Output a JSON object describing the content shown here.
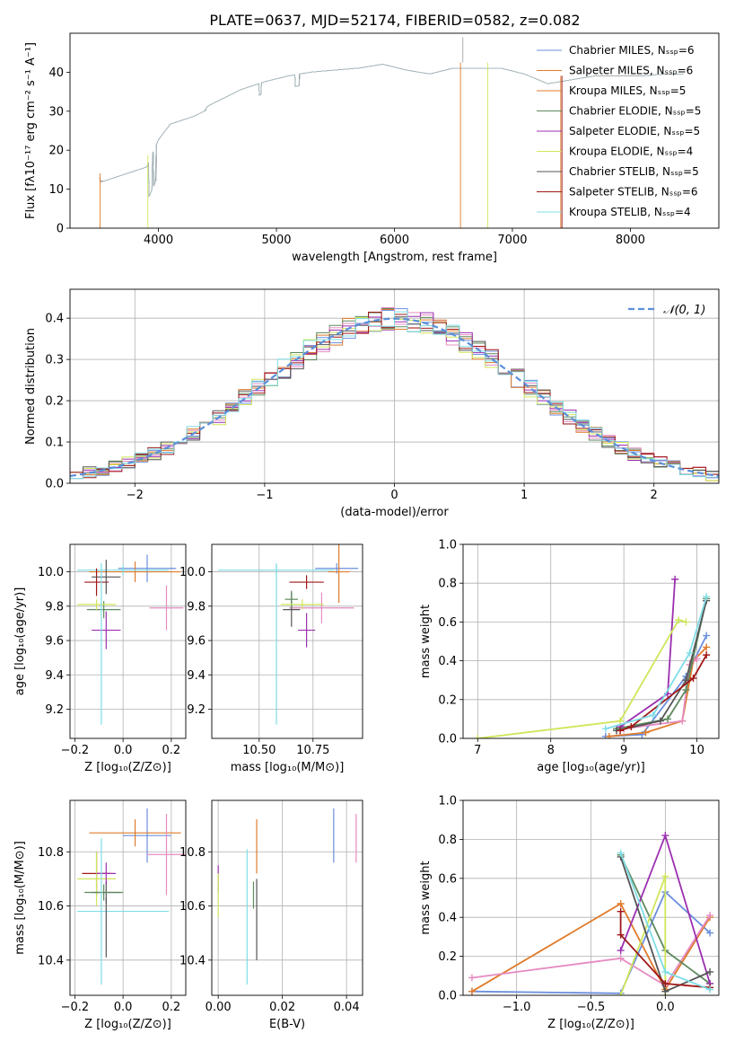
{
  "colors": {
    "blue": "#6b8fdc",
    "orange": "#e07b2a",
    "green": "#5e8a5e",
    "pink": "#e58cc2",
    "purple": "#9c2fb0",
    "yellow": "#cfe65a",
    "gray": "#555555",
    "red": "#a01818",
    "cyan": "#7fdde6",
    "normal_curve": "#5b8fd9"
  },
  "chart_data": [
    {
      "id": "spectrum",
      "type": "line",
      "title": "PLATE=0637, MJD=52174, FIBERID=0582, z=0.082",
      "xlabel": "wavelength [Angstrom, rest frame]",
      "ylabel": "Flux [fλ10⁻¹⁷ erg cm⁻² s⁻¹ A⁻¹]",
      "xlim": [
        3250,
        8750
      ],
      "ylim": [
        0,
        50
      ],
      "xticks": [
        "4000",
        "5000",
        "6000",
        "7000",
        "8000"
      ],
      "yticks": [
        "0",
        "10",
        "20",
        "30",
        "40"
      ],
      "legend_position": "right",
      "legend": [
        {
          "label": "Chabrier MILES, Nₛₛₚ=6",
          "color": "blue"
        },
        {
          "label": "Salpeter MILES, Nₛₛₚ=6",
          "color": "orange"
        },
        {
          "label": "Kroupa MILES, Nₛₛₚ=5",
          "color": "orange"
        },
        {
          "label": "Chabrier ELODIE, Nₛₛₚ=5",
          "color": "green"
        },
        {
          "label": "Salpeter ELODIE, Nₛₛₚ=5",
          "color": "purple"
        },
        {
          "label": "Kroupa ELODIE, Nₛₛₚ=4",
          "color": "yellow"
        },
        {
          "label": "Chabrier STELIB, Nₛₛₚ=5",
          "color": "gray"
        },
        {
          "label": "Salpeter STELIB, Nₛₛₚ=6",
          "color": "red"
        },
        {
          "label": "Kroupa STELIB, Nₛₛₚ=4",
          "color": "cyan"
        }
      ],
      "continuum": {
        "wavelength": [
          3500,
          3700,
          3900,
          4000,
          4100,
          4300,
          4500,
          4700,
          4900,
          5100,
          5300,
          5500,
          5700,
          5900,
          6100,
          6300,
          6500,
          6700,
          6900,
          7100,
          7300,
          7500,
          7700,
          7900,
          8100,
          8300,
          8450
        ],
        "flux": [
          14,
          16,
          18,
          25,
          29,
          31,
          34,
          37,
          39,
          40.5,
          41.5,
          42,
          42.5,
          43.5,
          42,
          41,
          42.5,
          42.5,
          42.5,
          41,
          38.5,
          39.5,
          40.5,
          40.5,
          40.5,
          41,
          41
        ]
      }
    },
    {
      "id": "residuals",
      "type": "histogram",
      "xlabel": "(data-model)/error",
      "ylabel": "Normed distribution",
      "xlim": [
        -2.5,
        2.5
      ],
      "ylim": [
        0,
        0.47
      ],
      "xticks": [
        "−2",
        "−1",
        "0",
        "1",
        "2"
      ],
      "yticks": [
        "0.0",
        "0.1",
        "0.2",
        "0.3",
        "0.4"
      ],
      "bin_width": 0.1,
      "legend": [
        {
          "label": "𝒩(0, 1)",
          "color": "normal_curve",
          "style": "dashed"
        }
      ]
    },
    {
      "id": "age_vs_Z",
      "type": "errorbar",
      "xlabel": "Z [log₁₀(Z/Z⊙)]",
      "ylabel": "age  [log₁₀(age/yr)]",
      "xlim": [
        -0.22,
        0.26
      ],
      "ylim": [
        9.03,
        10.16
      ],
      "xticks": [
        "−0.2",
        "0.0",
        "0.2"
      ],
      "yticks": [
        "9.2",
        "9.4",
        "9.6",
        "9.8",
        "10.0"
      ],
      "points": [
        {
          "color": "blue",
          "x": 0.1,
          "xerr": 0.12,
          "y": 10.02,
          "yerr": 0.08
        },
        {
          "color": "orange",
          "x": 0.05,
          "xerr": 0.19,
          "y": 10.0,
          "yerr": 0.06
        },
        {
          "color": "pink",
          "x": 0.18,
          "xerr": 0.07,
          "y": 9.79,
          "yerr": 0.13
        },
        {
          "color": "cyan",
          "x": 0.0,
          "xerr": 0.19,
          "y": 10.01,
          "yerr": 0.03
        },
        {
          "color": "red",
          "x": -0.11,
          "xerr": 0.05,
          "y": 9.94,
          "yerr": 0.08
        },
        {
          "color": "gray",
          "x": -0.07,
          "xerr": 0.06,
          "y": 9.97,
          "yerr": 0.1
        },
        {
          "color": "green",
          "x": -0.08,
          "xerr": 0.07,
          "y": 9.78,
          "yerr": 0.05
        },
        {
          "color": "yellow",
          "x": -0.11,
          "xerr": 0.08,
          "y": 9.81,
          "yerr": 0.03
        },
        {
          "color": "purple",
          "x": -0.07,
          "xerr": 0.06,
          "y": 9.66,
          "yerr": 0.11
        },
        {
          "color": "cyan",
          "x": -0.09,
          "xerr": 0.0,
          "y": 9.58,
          "yerr": 0.47
        }
      ]
    },
    {
      "id": "age_vs_mass",
      "type": "errorbar",
      "xlabel": "mass [log₁₀(M/M⊙)]",
      "xlim": [
        10.28,
        10.98
      ],
      "ylim": [
        9.03,
        10.16
      ],
      "xticks": [
        "10.50",
        "10.75"
      ],
      "yticks": [
        "9.2",
        "9.4",
        "9.6",
        "9.8",
        "10.0"
      ],
      "points": [
        {
          "color": "blue",
          "x": 10.86,
          "xerr": 0.1,
          "y": 10.02,
          "yerr": 0.03
        },
        {
          "color": "orange",
          "x": 10.87,
          "xerr": 0.05,
          "y": 10.0,
          "yerr": 0.18
        },
        {
          "color": "pink",
          "x": 10.79,
          "xerr": 0.15,
          "y": 9.79,
          "yerr": 0.09
        },
        {
          "color": "cyan",
          "x": 10.58,
          "xerr": 0.27,
          "y": 10.01,
          "yerr": 0.03
        },
        {
          "color": "red",
          "x": 10.72,
          "xerr": 0.08,
          "y": 9.94,
          "yerr": 0.04
        },
        {
          "color": "gray",
          "x": 10.65,
          "xerr": 0.04,
          "y": 9.78,
          "yerr": 0.1
        },
        {
          "color": "green",
          "x": 10.65,
          "xerr": 0.03,
          "y": 9.84,
          "yerr": 0.05
        },
        {
          "color": "yellow",
          "x": 10.7,
          "xerr": 0.1,
          "y": 9.81,
          "yerr": 0.03
        },
        {
          "color": "purple",
          "x": 10.72,
          "xerr": 0.04,
          "y": 9.66,
          "yerr": 0.1
        },
        {
          "color": "cyan",
          "x": 10.58,
          "xerr": 0.0,
          "y": 9.58,
          "yerr": 0.47
        }
      ]
    },
    {
      "id": "weight_vs_age",
      "type": "line",
      "xlabel": "age  [log₁₀(age/yr)]",
      "ylabel": "mass weight",
      "xlim": [
        6.8,
        10.3
      ],
      "ylim": [
        0,
        1.0
      ],
      "xticks": [
        "7",
        "8",
        "9",
        "10"
      ],
      "yticks": [
        "0.0",
        "0.2",
        "0.4",
        "0.6",
        "0.8",
        "1.0"
      ],
      "series": [
        {
          "color": "blue",
          "points": [
            [
              8.75,
              0.01
            ],
            [
              9.25,
              0.02
            ],
            [
              9.85,
              0.32
            ],
            [
              10.13,
              0.53
            ]
          ]
        },
        {
          "color": "orange",
          "points": [
            [
              8.8,
              0.01
            ],
            [
              9.3,
              0.03
            ],
            [
              9.8,
              0.09
            ],
            [
              9.95,
              0.4
            ],
            [
              10.13,
              0.47
            ]
          ]
        },
        {
          "color": "pink",
          "points": [
            [
              9.0,
              0.05
            ],
            [
              9.8,
              0.09
            ],
            [
              9.9,
              0.38
            ],
            [
              10.0,
              0.41
            ]
          ]
        },
        {
          "color": "green",
          "points": [
            [
              8.9,
              0.05
            ],
            [
              9.6,
              0.1
            ],
            [
              9.85,
              0.25
            ],
            [
              10.13,
              0.72
            ]
          ]
        },
        {
          "color": "purple",
          "points": [
            [
              8.95,
              0.06
            ],
            [
              9.6,
              0.23
            ],
            [
              9.7,
              0.82
            ]
          ]
        },
        {
          "color": "yellow",
          "points": [
            [
              7.0,
              0.0
            ],
            [
              8.95,
              0.09
            ],
            [
              9.75,
              0.61
            ],
            [
              9.85,
              0.6
            ]
          ]
        },
        {
          "color": "gray",
          "points": [
            [
              8.9,
              0.04
            ],
            [
              9.5,
              0.09
            ],
            [
              9.85,
              0.3
            ],
            [
              10.13,
              0.71
            ]
          ]
        },
        {
          "color": "red",
          "points": [
            [
              8.95,
              0.04
            ],
            [
              9.1,
              0.06
            ],
            [
              9.95,
              0.31
            ],
            [
              10.13,
              0.43
            ]
          ]
        },
        {
          "color": "cyan",
          "points": [
            [
              8.75,
              0.05
            ],
            [
              9.4,
              0.12
            ],
            [
              9.9,
              0.44
            ],
            [
              10.13,
              0.73
            ]
          ]
        }
      ]
    },
    {
      "id": "mass_vs_Z",
      "type": "errorbar",
      "xlabel": "Z [log₁₀(Z/Z⊙)]",
      "ylabel": "mass [log₁₀(M/M⊙)]",
      "xlim": [
        -0.22,
        0.26
      ],
      "ylim": [
        10.27,
        10.99
      ],
      "xticks": [
        "−0.2",
        "0.0",
        "0.2"
      ],
      "yticks": [
        "10.4",
        "10.6",
        "10.8"
      ],
      "points": [
        {
          "color": "blue",
          "x": 0.1,
          "xerr": 0.1,
          "y": 10.86,
          "yerr": 0.1
        },
        {
          "color": "orange",
          "x": 0.05,
          "xerr": 0.19,
          "y": 10.87,
          "yerr": 0.05
        },
        {
          "color": "pink",
          "x": 0.18,
          "xerr": 0.08,
          "y": 10.79,
          "yerr": 0.15
        },
        {
          "color": "red",
          "x": -0.11,
          "xerr": 0.06,
          "y": 10.72,
          "yerr": 0.08
        },
        {
          "color": "yellow",
          "x": -0.11,
          "xerr": 0.08,
          "y": 10.7,
          "yerr": 0.1
        },
        {
          "color": "gray",
          "x": -0.07,
          "xerr": 0.06,
          "y": 10.65,
          "yerr": 0.04
        },
        {
          "color": "green",
          "x": -0.08,
          "xerr": 0.08,
          "y": 10.65,
          "yerr": 0.03
        },
        {
          "color": "purple",
          "x": -0.07,
          "xerr": 0.04,
          "y": 10.72,
          "yerr": 0.04
        },
        {
          "color": "cyan",
          "x": 0.0,
          "xerr": 0.19,
          "y": 10.58,
          "yerr": 0.0
        },
        {
          "color": "cyan",
          "x": -0.09,
          "xerr": 0.0,
          "y": 10.58,
          "yerr": 0.27
        },
        {
          "color": "gray",
          "x": -0.07,
          "xerr": 0.0,
          "y": 10.52,
          "yerr": 0.11
        }
      ]
    },
    {
      "id": "mass_vs_ebv",
      "type": "errorbar",
      "xlabel": "E(B-V)",
      "xlim": [
        -0.002,
        0.045
      ],
      "ylim": [
        10.27,
        10.99
      ],
      "xticks": [
        "0.00",
        "0.02",
        "0.04"
      ],
      "yticks": [
        "10.4",
        "10.6",
        "10.8"
      ],
      "points": [
        {
          "color": "blue",
          "x": 0.036,
          "xerr": 0.0,
          "y": 10.86,
          "yerr": 0.1
        },
        {
          "color": "pink",
          "x": 0.043,
          "xerr": 0.0,
          "y": 10.85,
          "yerr": 0.09
        },
        {
          "color": "orange",
          "x": 0.012,
          "xerr": 0.0,
          "y": 10.82,
          "yerr": 0.1
        },
        {
          "color": "purple",
          "x": 0.0,
          "xerr": 0.0,
          "y": 10.7,
          "yerr": 0.05
        },
        {
          "color": "yellow",
          "x": 0.0,
          "xerr": 0.0,
          "y": 10.64,
          "yerr": 0.08
        },
        {
          "color": "green",
          "x": 0.011,
          "xerr": 0.0,
          "y": 10.64,
          "yerr": 0.05
        },
        {
          "color": "cyan",
          "x": 0.009,
          "xerr": 0.0,
          "y": 10.56,
          "yerr": 0.25
        },
        {
          "color": "gray",
          "x": 0.012,
          "xerr": 0.0,
          "y": 10.55,
          "yerr": 0.15
        }
      ]
    },
    {
      "id": "weight_vs_Z",
      "type": "line",
      "xlabel": "Z [log₁₀(Z/Z⊙)]",
      "ylabel": "mass weight",
      "xlim": [
        -1.36,
        0.36
      ],
      "ylim": [
        0,
        1.0
      ],
      "xticks": [
        "−1.0",
        "−0.5",
        "0.0"
      ],
      "yticks": [
        "0.0",
        "0.2",
        "0.4",
        "0.6",
        "0.8",
        "1.0"
      ],
      "series": [
        {
          "color": "blue",
          "points": [
            [
              -1.3,
              0.02
            ],
            [
              -0.3,
              0.01
            ],
            [
              0.0,
              0.53
            ],
            [
              0.3,
              0.32
            ]
          ]
        },
        {
          "color": "orange",
          "points": [
            [
              -1.3,
              0.02
            ],
            [
              -0.3,
              0.47
            ],
            [
              0.0,
              0.03
            ],
            [
              0.3,
              0.4
            ]
          ]
        },
        {
          "color": "pink",
          "points": [
            [
              -1.3,
              0.09
            ],
            [
              -0.3,
              0.19
            ],
            [
              0.0,
              0.05
            ],
            [
              0.3,
              0.41
            ]
          ]
        },
        {
          "color": "green",
          "points": [
            [
              -0.3,
              0.72
            ],
            [
              0.0,
              0.23
            ],
            [
              0.3,
              0.06
            ]
          ]
        },
        {
          "color": "purple",
          "points": [
            [
              -0.3,
              0.23
            ],
            [
              0.0,
              0.82
            ],
            [
              0.3,
              0.06
            ]
          ]
        },
        {
          "color": "yellow",
          "points": [
            [
              -0.3,
              0.0
            ],
            [
              0.0,
              0.61
            ],
            [
              0.0,
              0.0
            ]
          ]
        },
        {
          "color": "gray",
          "points": [
            [
              -0.3,
              0.71
            ],
            [
              0.0,
              0.02
            ],
            [
              0.3,
              0.12
            ]
          ]
        },
        {
          "color": "red",
          "points": [
            [
              -0.3,
              0.43
            ],
            [
              -0.3,
              0.31
            ],
            [
              0.0,
              0.06
            ],
            [
              0.3,
              0.04
            ]
          ]
        },
        {
          "color": "cyan",
          "points": [
            [
              -0.3,
              0.73
            ],
            [
              0.0,
              0.12
            ],
            [
              0.3,
              0.03
            ]
          ]
        }
      ]
    }
  ]
}
